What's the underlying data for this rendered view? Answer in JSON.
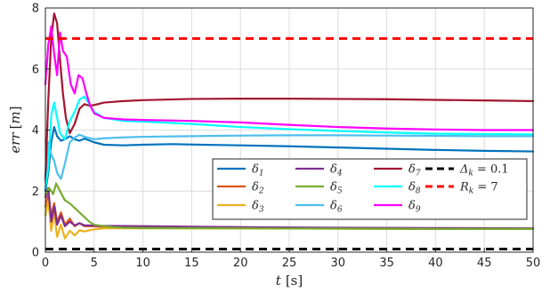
{
  "chart_data": {
    "type": "line",
    "xlabel": "t",
    "xunit": "[s]",
    "ylabel": "err",
    "yunit": "[m]",
    "xlim": [
      0,
      50
    ],
    "ylim": [
      0,
      8
    ],
    "xticks": [
      "0",
      "5",
      "10",
      "15",
      "20",
      "25",
      "30",
      "35",
      "40",
      "45",
      "50"
    ],
    "yticks": [
      "0",
      "2",
      "4",
      "6",
      "8"
    ],
    "grid": true,
    "legend_position": "lower-right",
    "series": [
      {
        "name": "δ1",
        "color": "#0072BD",
        "dash": "solid",
        "points": [
          [
            0,
            2.0
          ],
          [
            0.3,
            2.6
          ],
          [
            0.6,
            3.6
          ],
          [
            0.9,
            4.1
          ],
          [
            1.2,
            3.8
          ],
          [
            1.6,
            3.65
          ],
          [
            2.0,
            3.7
          ],
          [
            2.5,
            3.8
          ],
          [
            3.0,
            3.7
          ],
          [
            3.5,
            3.65
          ],
          [
            4.0,
            3.72
          ],
          [
            5,
            3.6
          ],
          [
            6,
            3.52
          ],
          [
            8,
            3.5
          ],
          [
            10,
            3.52
          ],
          [
            13,
            3.54
          ],
          [
            16,
            3.52
          ],
          [
            20,
            3.5
          ],
          [
            25,
            3.47
          ],
          [
            30,
            3.43
          ],
          [
            35,
            3.39
          ],
          [
            40,
            3.35
          ],
          [
            45,
            3.32
          ],
          [
            50,
            3.3
          ]
        ]
      },
      {
        "name": "δ2",
        "color": "#D95319",
        "dash": "solid",
        "points": [
          [
            0,
            1.5
          ],
          [
            0.3,
            1.9
          ],
          [
            0.6,
            1.2
          ],
          [
            0.9,
            1.6
          ],
          [
            1.2,
            1.0
          ],
          [
            1.6,
            1.3
          ],
          [
            2.0,
            0.9
          ],
          [
            2.5,
            1.1
          ],
          [
            3.0,
            0.85
          ],
          [
            3.5,
            0.95
          ],
          [
            4.0,
            0.85
          ],
          [
            5,
            0.85
          ],
          [
            6,
            0.83
          ],
          [
            10,
            0.82
          ],
          [
            20,
            0.8
          ],
          [
            30,
            0.78
          ],
          [
            40,
            0.77
          ],
          [
            50,
            0.76
          ]
        ]
      },
      {
        "name": "δ3",
        "color": "#EDB120",
        "dash": "solid",
        "points": [
          [
            0,
            1.2
          ],
          [
            0.3,
            1.7
          ],
          [
            0.6,
            0.7
          ],
          [
            0.9,
            1.3
          ],
          [
            1.2,
            0.5
          ],
          [
            1.6,
            0.9
          ],
          [
            2.0,
            0.45
          ],
          [
            2.5,
            0.7
          ],
          [
            3.0,
            0.55
          ],
          [
            3.5,
            0.72
          ],
          [
            4.0,
            0.68
          ],
          [
            5,
            0.75
          ],
          [
            6,
            0.78
          ],
          [
            10,
            0.78
          ],
          [
            20,
            0.78
          ],
          [
            30,
            0.77
          ],
          [
            40,
            0.76
          ],
          [
            50,
            0.76
          ]
        ]
      },
      {
        "name": "δ4",
        "color": "#7E2F8E",
        "dash": "solid",
        "points": [
          [
            0,
            1.8
          ],
          [
            0.3,
            2.1
          ],
          [
            0.6,
            1.0
          ],
          [
            0.9,
            1.5
          ],
          [
            1.2,
            0.9
          ],
          [
            1.6,
            1.2
          ],
          [
            2.0,
            0.85
          ],
          [
            2.5,
            1.0
          ],
          [
            3.0,
            0.88
          ],
          [
            3.5,
            0.95
          ],
          [
            4.0,
            0.88
          ],
          [
            5,
            0.87
          ],
          [
            6,
            0.86
          ],
          [
            10,
            0.85
          ],
          [
            20,
            0.82
          ],
          [
            30,
            0.8
          ],
          [
            40,
            0.79
          ],
          [
            50,
            0.78
          ]
        ]
      },
      {
        "name": "δ5",
        "color": "#77AC30",
        "dash": "solid",
        "points": [
          [
            0,
            1.9
          ],
          [
            0.4,
            2.1
          ],
          [
            0.8,
            1.9
          ],
          [
            1.1,
            2.25
          ],
          [
            1.5,
            2.0
          ],
          [
            2.0,
            1.7
          ],
          [
            2.5,
            1.6
          ],
          [
            3.0,
            1.45
          ],
          [
            3.5,
            1.3
          ],
          [
            4.0,
            1.15
          ],
          [
            4.5,
            1.0
          ],
          [
            5,
            0.9
          ],
          [
            6,
            0.85
          ],
          [
            7,
            0.82
          ],
          [
            8,
            0.8
          ],
          [
            10,
            0.79
          ],
          [
            20,
            0.78
          ],
          [
            30,
            0.77
          ],
          [
            40,
            0.76
          ],
          [
            50,
            0.76
          ]
        ]
      },
      {
        "name": "δ6",
        "color": "#4DBEEE",
        "dash": "solid",
        "points": [
          [
            0,
            2.3
          ],
          [
            0.3,
            3.6
          ],
          [
            0.6,
            3.2
          ],
          [
            0.9,
            3.0
          ],
          [
            1.2,
            2.6
          ],
          [
            1.6,
            2.4
          ],
          [
            2.0,
            2.9
          ],
          [
            2.5,
            3.6
          ],
          [
            3.0,
            3.75
          ],
          [
            3.5,
            3.85
          ],
          [
            4.0,
            3.78
          ],
          [
            5,
            3.7
          ],
          [
            6,
            3.73
          ],
          [
            8,
            3.76
          ],
          [
            10,
            3.78
          ],
          [
            15,
            3.8
          ],
          [
            20,
            3.82
          ],
          [
            25,
            3.83
          ],
          [
            30,
            3.83
          ],
          [
            35,
            3.82
          ],
          [
            40,
            3.81
          ],
          [
            45,
            3.8
          ],
          [
            50,
            3.8
          ]
        ]
      },
      {
        "name": "δ7",
        "color": "#A2142F",
        "dash": "solid",
        "points": [
          [
            0,
            2.4
          ],
          [
            0.3,
            5.0
          ],
          [
            0.6,
            7.0
          ],
          [
            0.9,
            7.82
          ],
          [
            1.2,
            7.5
          ],
          [
            1.5,
            6.3
          ],
          [
            1.8,
            5.2
          ],
          [
            2.1,
            4.4
          ],
          [
            2.5,
            3.9
          ],
          [
            3.0,
            4.2
          ],
          [
            3.5,
            4.7
          ],
          [
            4.0,
            4.85
          ],
          [
            4.5,
            4.8
          ],
          [
            5,
            4.82
          ],
          [
            6,
            4.9
          ],
          [
            8,
            4.95
          ],
          [
            10,
            4.98
          ],
          [
            15,
            5.02
          ],
          [
            20,
            5.03
          ],
          [
            25,
            5.03
          ],
          [
            30,
            5.02
          ],
          [
            35,
            5.01
          ],
          [
            40,
            4.99
          ],
          [
            45,
            4.97
          ],
          [
            50,
            4.95
          ]
        ]
      },
      {
        "name": "δ8",
        "color": "#00FFFF",
        "dash": "solid",
        "points": [
          [
            0,
            2.1
          ],
          [
            0.3,
            2.8
          ],
          [
            0.6,
            4.5
          ],
          [
            0.9,
            4.9
          ],
          [
            1.2,
            4.4
          ],
          [
            1.5,
            3.9
          ],
          [
            2.0,
            3.7
          ],
          [
            2.5,
            4.3
          ],
          [
            3.0,
            4.6
          ],
          [
            3.5,
            5.0
          ],
          [
            4.0,
            5.1
          ],
          [
            4.5,
            4.85
          ],
          [
            5,
            4.6
          ],
          [
            6,
            4.4
          ],
          [
            8,
            4.3
          ],
          [
            10,
            4.28
          ],
          [
            15,
            4.2
          ],
          [
            20,
            4.1
          ],
          [
            25,
            4.03
          ],
          [
            30,
            3.97
          ],
          [
            35,
            3.92
          ],
          [
            40,
            3.88
          ],
          [
            45,
            3.87
          ],
          [
            50,
            3.86
          ]
        ]
      },
      {
        "name": "δ9",
        "color": "#FF00FF",
        "dash": "solid",
        "points": [
          [
            0,
            5.5
          ],
          [
            0.3,
            6.8
          ],
          [
            0.6,
            7.4
          ],
          [
            0.9,
            6.5
          ],
          [
            1.2,
            5.8
          ],
          [
            1.5,
            7.2
          ],
          [
            1.8,
            6.6
          ],
          [
            2.2,
            6.4
          ],
          [
            2.6,
            5.5
          ],
          [
            3.0,
            5.2
          ],
          [
            3.4,
            5.8
          ],
          [
            3.8,
            5.7
          ],
          [
            4.2,
            5.2
          ],
          [
            4.6,
            4.8
          ],
          [
            5,
            4.55
          ],
          [
            6,
            4.4
          ],
          [
            8,
            4.35
          ],
          [
            10,
            4.33
          ],
          [
            15,
            4.3
          ],
          [
            20,
            4.25
          ],
          [
            25,
            4.17
          ],
          [
            30,
            4.1
          ],
          [
            35,
            4.05
          ],
          [
            40,
            4.02
          ],
          [
            45,
            4.0
          ],
          [
            50,
            4.0
          ]
        ]
      },
      {
        "name": "Δk = 0.1",
        "color": "#000000",
        "dash": "dashed",
        "points": [
          [
            0,
            0.1
          ],
          [
            50,
            0.1
          ]
        ]
      },
      {
        "name": "Rk = 7",
        "color": "#FF0000",
        "dash": "dashed",
        "points": [
          [
            0,
            7
          ],
          [
            50,
            7
          ]
        ]
      }
    ],
    "legend": [
      {
        "base": "δ",
        "sub": "1",
        "color": "#0072BD",
        "dash": "solid"
      },
      {
        "base": "δ",
        "sub": "2",
        "color": "#D95319",
        "dash": "solid"
      },
      {
        "base": "δ",
        "sub": "3",
        "color": "#EDB120",
        "dash": "solid"
      },
      {
        "base": "δ",
        "sub": "4",
        "color": "#7E2F8E",
        "dash": "solid"
      },
      {
        "base": "δ",
        "sub": "5",
        "color": "#77AC30",
        "dash": "solid"
      },
      {
        "base": "δ",
        "sub": "6",
        "color": "#4DBEEE",
        "dash": "solid"
      },
      {
        "base": "δ",
        "sub": "7",
        "color": "#A2142F",
        "dash": "solid"
      },
      {
        "base": "δ",
        "sub": "8",
        "color": "#00FFFF",
        "dash": "solid"
      },
      {
        "base": "δ",
        "sub": "9",
        "color": "#FF00FF",
        "dash": "solid"
      },
      {
        "base": "Δ",
        "sub": "k",
        "tail": " = 0.1",
        "color": "#000000",
        "dash": "dashed"
      },
      {
        "base": "R",
        "sub": "k",
        "tail": " = 7",
        "color": "#FF0000",
        "dash": "dashed"
      },
      {
        "base": "",
        "sub": "",
        "tail": "",
        "color": "",
        "dash": "none"
      }
    ]
  }
}
